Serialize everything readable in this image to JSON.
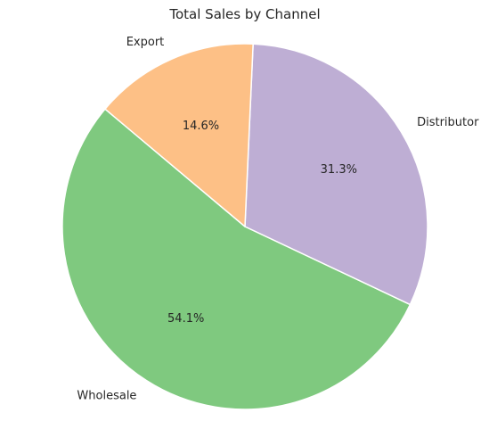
{
  "chart_data": {
    "type": "pie",
    "title": "Total Sales by Channel",
    "slices": [
      {
        "label": "Wholesale",
        "percent": 54.1,
        "pct_label": "54.1%",
        "color": "#7fc97f"
      },
      {
        "label": "Distributor",
        "percent": 31.3,
        "pct_label": "31.3%",
        "color": "#beaed4"
      },
      {
        "label": "Export",
        "percent": 14.6,
        "pct_label": "14.6%",
        "color": "#fdc086"
      }
    ],
    "start_angle_deg": 140,
    "direction": "counterclockwise",
    "legend": "none"
  }
}
